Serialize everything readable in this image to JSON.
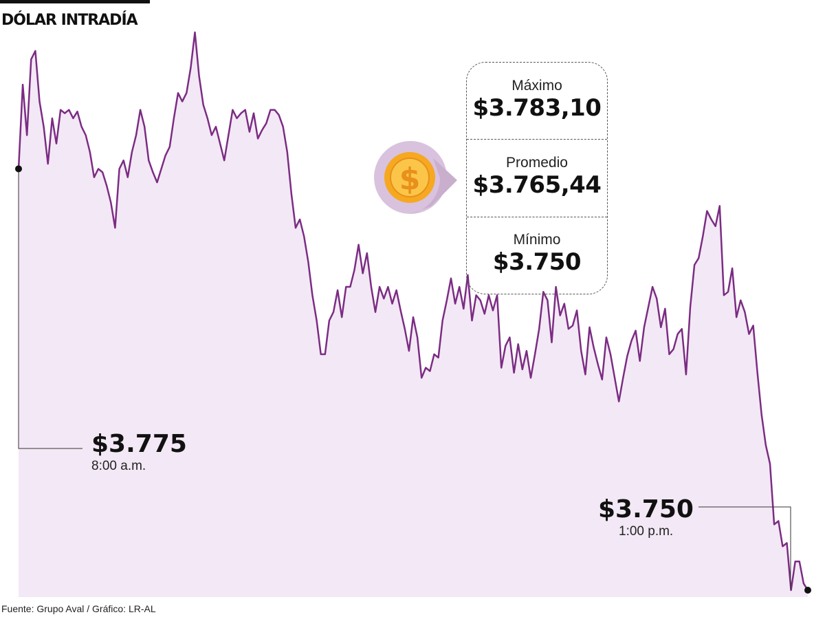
{
  "title": "DÓLAR INTRADÍA",
  "stats": {
    "max_label": "Máximo",
    "max_value": "$3.783,10",
    "avg_label": "Promedio",
    "avg_value": "$3.765,44",
    "min_label": "Mínimo",
    "min_value": "$3.750"
  },
  "callouts": {
    "start_value": "$3.775",
    "start_time": "8:00 a.m.",
    "end_value": "$3.750",
    "end_time": "1:00 p.m."
  },
  "icon": "dollar-coin-icon",
  "source": "Fuente: Grupo Aval / Gráfico: LR-AL",
  "colors": {
    "line": "#7b2c83",
    "fill": "#f3e8f5",
    "coin_bg": "#d9c2dd",
    "coin": "#f6a821",
    "coin_inner": "#fbc54a"
  },
  "chart_data": {
    "type": "area",
    "title": "DÓLAR INTRADÍA",
    "xlabel": "",
    "ylabel": "",
    "x_start": "8:00 a.m.",
    "x_end": "1:00 p.m.",
    "ylim": [
      3748.5,
      3784
    ],
    "grid": false,
    "series": [
      {
        "values": [
          3775,
          3780,
          3777,
          3781.5,
          3782,
          3779,
          3777.5,
          3775.3,
          3778,
          3776.5,
          3778.5,
          3778.3,
          3778.5,
          3778,
          3778.4,
          3777.5,
          3777,
          3776,
          3774.5,
          3775,
          3774.8,
          3774,
          3773,
          3771.5,
          3775,
          3775.5,
          3774.5,
          3776,
          3777,
          3778.5,
          3777.5,
          3775.5,
          3774.8,
          3774.2,
          3775,
          3775.8,
          3776.3,
          3778,
          3779.5,
          3779,
          3779.5,
          3781,
          3783.1,
          3780.5,
          3778.8,
          3778,
          3777,
          3777.5,
          3776.5,
          3775.5,
          3777,
          3778.5,
          3778,
          3778.3,
          3778.5,
          3777.2,
          3778.3,
          3776.8,
          3777.3,
          3777.7,
          3778.5,
          3778.5,
          3778.2,
          3777.5,
          3776,
          3773.5,
          3771.5,
          3772,
          3771,
          3769.5,
          3767.5,
          3766,
          3764,
          3764,
          3766,
          3766.5,
          3767.8,
          3766.2,
          3768,
          3768,
          3769,
          3770.5,
          3768.8,
          3770,
          3768,
          3766.5,
          3768,
          3767.3,
          3768,
          3767,
          3767.8,
          3766.6,
          3765.5,
          3764.2,
          3766.2,
          3765,
          3762.6,
          3763.2,
          3763,
          3764,
          3763.8,
          3766,
          3767.2,
          3768.5,
          3767,
          3768,
          3766.7,
          3768.7,
          3766,
          3767.5,
          3767.2,
          3766.4,
          3767.5,
          3766.6,
          3767.5,
          3763.2,
          3764.5,
          3765,
          3762.9,
          3764.6,
          3763.1,
          3764.2,
          3762.6,
          3764,
          3765.5,
          3767.7,
          3767.2,
          3764.7,
          3768,
          3766.3,
          3767,
          3765.5,
          3765.7,
          3766.6,
          3764.2,
          3762.8,
          3765.6,
          3764.4,
          3763.4,
          3762.5,
          3765,
          3764,
          3762.6,
          3761.2,
          3762.6,
          3763.9,
          3764.8,
          3765.4,
          3763.6,
          3765.6,
          3766.8,
          3768,
          3767.3,
          3765.6,
          3766.7,
          3764,
          3764.3,
          3765.2,
          3765.5,
          3762.8,
          3766.8,
          3769.3,
          3769.7,
          3771,
          3772.5,
          3772,
          3771.6,
          3772.8,
          3767.5,
          3767.7,
          3769.1,
          3766.2,
          3767.2,
          3766.5,
          3765.2,
          3765.7,
          3762.9,
          3760.4,
          3758.6,
          3757.5,
          3753.9,
          3754.1,
          3752.6,
          3752.8,
          3750,
          3751.7,
          3751.7,
          3750.4,
          3750
        ]
      }
    ]
  }
}
